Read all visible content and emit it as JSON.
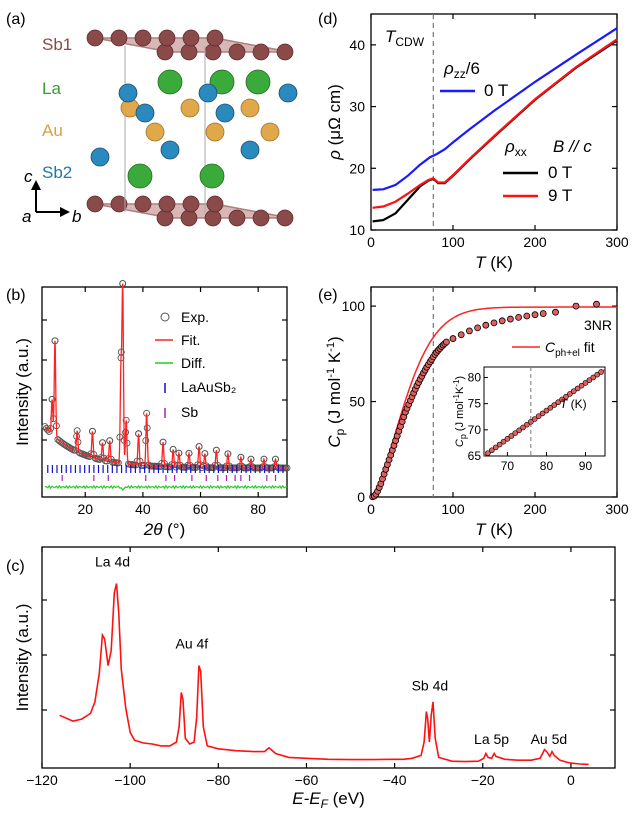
{
  "panel_labels": {
    "a": "(a)",
    "b": "(b)",
    "c": "(c)",
    "d": "(d)",
    "e": "(e)"
  },
  "structure": {
    "labels": [
      {
        "text": "Sb1",
        "color": "#8b4a4a"
      },
      {
        "text": "La",
        "color": "#3a9a3a"
      },
      {
        "text": "Au",
        "color": "#d9a040"
      },
      {
        "text": "Sb2",
        "color": "#2277aa"
      }
    ],
    "axes": {
      "c": "c",
      "a": "a",
      "b": "b"
    }
  },
  "chart_data": [
    {
      "id": "b",
      "type": "scatter",
      "xlabel_symbol": "2θ",
      "xlabel_unit": "(°)",
      "ylabel": "Intensity (a.u.)",
      "xlim": [
        5,
        90
      ],
      "xticks": [
        20,
        40,
        60,
        80
      ],
      "legend": [
        "Exp.",
        "Fit.",
        "Diff.",
        "LaAuSb₂",
        "Sb"
      ],
      "colors": {
        "exp": "#555555",
        "fit": "#ff2222",
        "diff": "#22cc22",
        "laausb2": "#1111cc",
        "sb": "#aa22aa"
      },
      "peaks": [
        {
          "x": 8.5,
          "h": 0.2
        },
        {
          "x": 9.5,
          "h": 0.55
        },
        {
          "x": 17.2,
          "h": 0.12
        },
        {
          "x": 22.5,
          "h": 0.15
        },
        {
          "x": 26.0,
          "h": 0.1
        },
        {
          "x": 28.5,
          "h": 0.12
        },
        {
          "x": 32.4,
          "h": 0.55
        },
        {
          "x": 33.0,
          "h": 1.0
        },
        {
          "x": 34.2,
          "h": 0.25
        },
        {
          "x": 38.5,
          "h": 0.18
        },
        {
          "x": 41.3,
          "h": 0.3
        },
        {
          "x": 47.0,
          "h": 0.14
        },
        {
          "x": 50.5,
          "h": 0.1
        },
        {
          "x": 52.5,
          "h": 0.08
        },
        {
          "x": 56.0,
          "h": 0.08
        },
        {
          "x": 59.5,
          "h": 0.12
        },
        {
          "x": 61.5,
          "h": 0.08
        },
        {
          "x": 65.5,
          "h": 0.1
        },
        {
          "x": 69.5,
          "h": 0.08
        },
        {
          "x": 74.0,
          "h": 0.06
        },
        {
          "x": 77.5,
          "h": 0.05
        },
        {
          "x": 82.0,
          "h": 0.05
        },
        {
          "x": 86.0,
          "h": 0.05
        }
      ]
    },
    {
      "id": "c",
      "type": "line",
      "xlabel": "E-E",
      "xlabel_sub": "F",
      "xlabel_unit": " (eV)",
      "ylabel": "Intensity (a.u.)",
      "xlim": [
        -120,
        10
      ],
      "xticks": [
        -120,
        -100,
        -80,
        -60,
        -40,
        -20,
        0
      ],
      "color": "#ff1111",
      "points": [
        [
          -116,
          0.26
        ],
        [
          -115,
          0.25
        ],
        [
          -113,
          0.23
        ],
        [
          -111,
          0.24
        ],
        [
          -109,
          0.27
        ],
        [
          -108,
          0.33
        ],
        [
          -107,
          0.48
        ],
        [
          -106.3,
          0.68
        ],
        [
          -105.8,
          0.66
        ],
        [
          -105,
          0.52
        ],
        [
          -104.3,
          0.6
        ],
        [
          -103.6,
          0.9
        ],
        [
          -103.1,
          0.95
        ],
        [
          -102.6,
          0.8
        ],
        [
          -102,
          0.5
        ],
        [
          -101,
          0.3
        ],
        [
          -100,
          0.17
        ],
        [
          -99,
          0.13
        ],
        [
          -97,
          0.115
        ],
        [
          -95,
          0.11
        ],
        [
          -93,
          0.1
        ],
        [
          -91,
          0.1
        ],
        [
          -89.5,
          0.12
        ],
        [
          -88.9,
          0.2
        ],
        [
          -88.4,
          0.38
        ],
        [
          -88.0,
          0.34
        ],
        [
          -87.5,
          0.14
        ],
        [
          -86.5,
          0.11
        ],
        [
          -85.5,
          0.12
        ],
        [
          -84.9,
          0.25
        ],
        [
          -84.4,
          0.52
        ],
        [
          -84.0,
          0.49
        ],
        [
          -83.4,
          0.2
        ],
        [
          -82.5,
          0.1
        ],
        [
          -80,
          0.085
        ],
        [
          -76,
          0.075
        ],
        [
          -72,
          0.07
        ],
        [
          -69.5,
          0.07
        ],
        [
          -68.5,
          0.09
        ],
        [
          -67,
          0.06
        ],
        [
          -64,
          0.04
        ],
        [
          -60,
          0.035
        ],
        [
          -55,
          0.03
        ],
        [
          -50,
          0.028
        ],
        [
          -45,
          0.028
        ],
        [
          -40,
          0.03
        ],
        [
          -38,
          0.03
        ],
        [
          -36,
          0.035
        ],
        [
          -34,
          0.05
        ],
        [
          -33.3,
          0.12
        ],
        [
          -32.8,
          0.28
        ],
        [
          -32.5,
          0.24
        ],
        [
          -32.1,
          0.12
        ],
        [
          -31.7,
          0.26
        ],
        [
          -31.3,
          0.33
        ],
        [
          -30.8,
          0.14
        ],
        [
          -30,
          0.04
        ],
        [
          -27,
          0.02
        ],
        [
          -24,
          0.018
        ],
        [
          -21,
          0.02
        ],
        [
          -19.8,
          0.035
        ],
        [
          -19.3,
          0.06
        ],
        [
          -18.8,
          0.04
        ],
        [
          -18,
          0.035
        ],
        [
          -17.4,
          0.06
        ],
        [
          -17.0,
          0.045
        ],
        [
          -15,
          0.03
        ],
        [
          -12,
          0.025
        ],
        [
          -9,
          0.025
        ],
        [
          -7,
          0.035
        ],
        [
          -6.0,
          0.08
        ],
        [
          -5.5,
          0.07
        ],
        [
          -4.8,
          0.045
        ],
        [
          -4.3,
          0.07
        ],
        [
          -3.8,
          0.05
        ],
        [
          -2.5,
          0.025
        ],
        [
          -1,
          0.015
        ],
        [
          0,
          0.01
        ],
        [
          2,
          0.005
        ],
        [
          4,
          0.003
        ]
      ],
      "annotations": [
        {
          "text": "La 4d",
          "x": -104,
          "y": 1.05
        },
        {
          "text": "Au 4f",
          "x": -86,
          "y": 0.62
        },
        {
          "text": "Sb 4d",
          "x": -32,
          "y": 0.4
        },
        {
          "text": "La 5p",
          "x": -18,
          "y": 0.12
        },
        {
          "text": "Au 5d",
          "x": -5,
          "y": 0.12
        }
      ]
    },
    {
      "id": "d",
      "type": "line",
      "xlabel": "T (K)",
      "ylabel_sym": "ρ",
      "ylabel_unit": "(μΩ cm)",
      "xlim": [
        0,
        300
      ],
      "ylim": [
        10,
        45
      ],
      "xticks": [
        0,
        100,
        200,
        300
      ],
      "yticks": [
        10,
        20,
        30,
        40
      ],
      "vline": 76,
      "vline_label": "T",
      "vline_label_sub": "CDW",
      "series": [
        {
          "name": "0 T",
          "group": "ρzz/6",
          "color": "#1a1aff",
          "points": [
            [
              2,
              16.5
            ],
            [
              15,
              16.6
            ],
            [
              30,
              17.3
            ],
            [
              45,
              18.8
            ],
            [
              60,
              20.6
            ],
            [
              72,
              21.8
            ],
            [
              80,
              22.3
            ],
            [
              90,
              23.1
            ],
            [
              100,
              24.2
            ],
            [
              120,
              26.3
            ],
            [
              150,
              29.3
            ],
            [
              200,
              34.0
            ],
            [
              250,
              38.4
            ],
            [
              300,
              42.7
            ]
          ]
        },
        {
          "name": "0 T",
          "group": "ρxx",
          "color": "#000000",
          "points": [
            [
              2,
              11.4
            ],
            [
              15,
              11.6
            ],
            [
              30,
              12.7
            ],
            [
              45,
              14.9
            ],
            [
              60,
              17.1
            ],
            [
              70,
              18.0
            ],
            [
              76,
              18.3
            ],
            [
              82,
              17.6
            ],
            [
              90,
              17.6
            ],
            [
              100,
              18.8
            ],
            [
              120,
              21.4
            ],
            [
              150,
              25.1
            ],
            [
              200,
              31.1
            ],
            [
              250,
              36.3
            ],
            [
              300,
              40.7
            ]
          ]
        },
        {
          "name": "9 T",
          "group": "ρxx",
          "color": "#ff1111",
          "points": [
            [
              2,
              13.6
            ],
            [
              15,
              13.8
            ],
            [
              30,
              14.6
            ],
            [
              45,
              15.9
            ],
            [
              60,
              17.3
            ],
            [
              70,
              18.1
            ],
            [
              76,
              18.4
            ],
            [
              82,
              17.7
            ],
            [
              90,
              17.7
            ],
            [
              100,
              18.9
            ],
            [
              120,
              21.5
            ],
            [
              150,
              25.2
            ],
            [
              200,
              31.2
            ],
            [
              250,
              36.4
            ],
            [
              300,
              40.9
            ]
          ]
        }
      ],
      "labels": {
        "rhozz": "ρ",
        "rhozz_sub": "zz",
        "rhozz_div": "/6",
        "rhoxx": "ρ",
        "rhoxx_sub": "xx",
        "field": "B // c"
      }
    },
    {
      "id": "e",
      "type": "scatter",
      "xlabel": "T (K)",
      "ylabel_sym": "C",
      "ylabel_sub": "p",
      "ylabel_unit": " (J mol",
      "ylabel_unit2": " K",
      "ylabel_unit3": ")",
      "xlim": [
        0,
        300
      ],
      "ylim": [
        0,
        110
      ],
      "xticks": [
        0,
        100,
        200,
        300
      ],
      "yticks": [
        0,
        50,
        100
      ],
      "vline": 76,
      "nr_label": "3NR",
      "nr_value": 100,
      "fit_label": "C",
      "fit_sub": "ph+el",
      "fit_suffix": " fit",
      "fit_color": "#ff2222",
      "data_points": [
        [
          2,
          0.1
        ],
        [
          4,
          0.5
        ],
        [
          6,
          1.5
        ],
        [
          8,
          3
        ],
        [
          10,
          5
        ],
        [
          12,
          7
        ],
        [
          14,
          9.5
        ],
        [
          16,
          12
        ],
        [
          18,
          14.5
        ],
        [
          20,
          17
        ],
        [
          22,
          19.5
        ],
        [
          24,
          22
        ],
        [
          26,
          24.5
        ],
        [
          28,
          27
        ],
        [
          30,
          29.5
        ],
        [
          32,
          32
        ],
        [
          34,
          34.5
        ],
        [
          36,
          37
        ],
        [
          38,
          39.5
        ],
        [
          40,
          42
        ],
        [
          42,
          44.5
        ],
        [
          44,
          46.5
        ],
        [
          46,
          48.5
        ],
        [
          48,
          50.5
        ],
        [
          50,
          52.5
        ],
        [
          52,
          54.5
        ],
        [
          54,
          56.5
        ],
        [
          56,
          58.3
        ],
        [
          58,
          60
        ],
        [
          60,
          61.7
        ],
        [
          62,
          63.3
        ],
        [
          64,
          65
        ],
        [
          66,
          66.5
        ],
        [
          68,
          68
        ],
        [
          70,
          69.4
        ],
        [
          72,
          70.8
        ],
        [
          74,
          72.1
        ],
        [
          76,
          73.4
        ],
        [
          78,
          74.7
        ],
        [
          80,
          75.8
        ],
        [
          82,
          76.9
        ],
        [
          84,
          77.8
        ],
        [
          86,
          78.8
        ],
        [
          88,
          79.6
        ],
        [
          90,
          80.4
        ],
        [
          92,
          81.2
        ],
        [
          100,
          83
        ],
        [
          110,
          85
        ],
        [
          120,
          87
        ],
        [
          130,
          88.6
        ],
        [
          140,
          90
        ],
        [
          150,
          91.2
        ],
        [
          160,
          92.3
        ],
        [
          170,
          93.2
        ],
        [
          180,
          94.1
        ],
        [
          190,
          94.8
        ],
        [
          200,
          95.5
        ],
        [
          210,
          96.1
        ],
        [
          225,
          96.8
        ],
        [
          250,
          100
        ],
        [
          275,
          101
        ]
      ],
      "inset": {
        "xlim": [
          64,
          95
        ],
        "ylim": [
          65,
          82
        ],
        "xticks": [
          70,
          80,
          90
        ],
        "yticks": [
          65,
          70,
          75,
          80
        ],
        "xlabel": "T (K)",
        "ylabel": "C",
        "ylabel_sub": "p",
        "ylabel_unit": " (J mol",
        "ylabel_unit2": "K",
        "ylabel_unit3": ")",
        "vline": 76
      }
    }
  ]
}
